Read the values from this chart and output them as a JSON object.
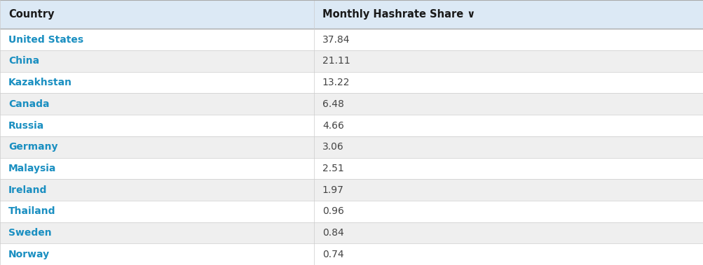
{
  "header_col1": "Country",
  "header_col2": "Monthly Hashrate Share ∨",
  "rows": [
    [
      "United States",
      "37.84"
    ],
    [
      "China",
      "21.11"
    ],
    [
      "Kazakhstan",
      "13.22"
    ],
    [
      "Canada",
      "6.48"
    ],
    [
      "Russia",
      "4.66"
    ],
    [
      "Germany",
      "3.06"
    ],
    [
      "Malaysia",
      "2.51"
    ],
    [
      "Ireland",
      "1.97"
    ],
    [
      "Thailand",
      "0.96"
    ],
    [
      "Sweden",
      "0.84"
    ],
    [
      "Norway",
      "0.74"
    ]
  ],
  "col_split": 0.446,
  "header_bg": "#dce9f5",
  "row_bg_white": "#ffffff",
  "row_bg_gray": "#efefef",
  "header_text_color": "#1a1a1a",
  "country_text_color": "#1a8fc1",
  "value_text_color": "#444444",
  "header_font_size": 10.5,
  "row_font_size": 10,
  "divider_color": "#cccccc",
  "header_divider_color": "#aaaaaa",
  "fig_width": 10.04,
  "fig_height": 3.79,
  "dpi": 100
}
